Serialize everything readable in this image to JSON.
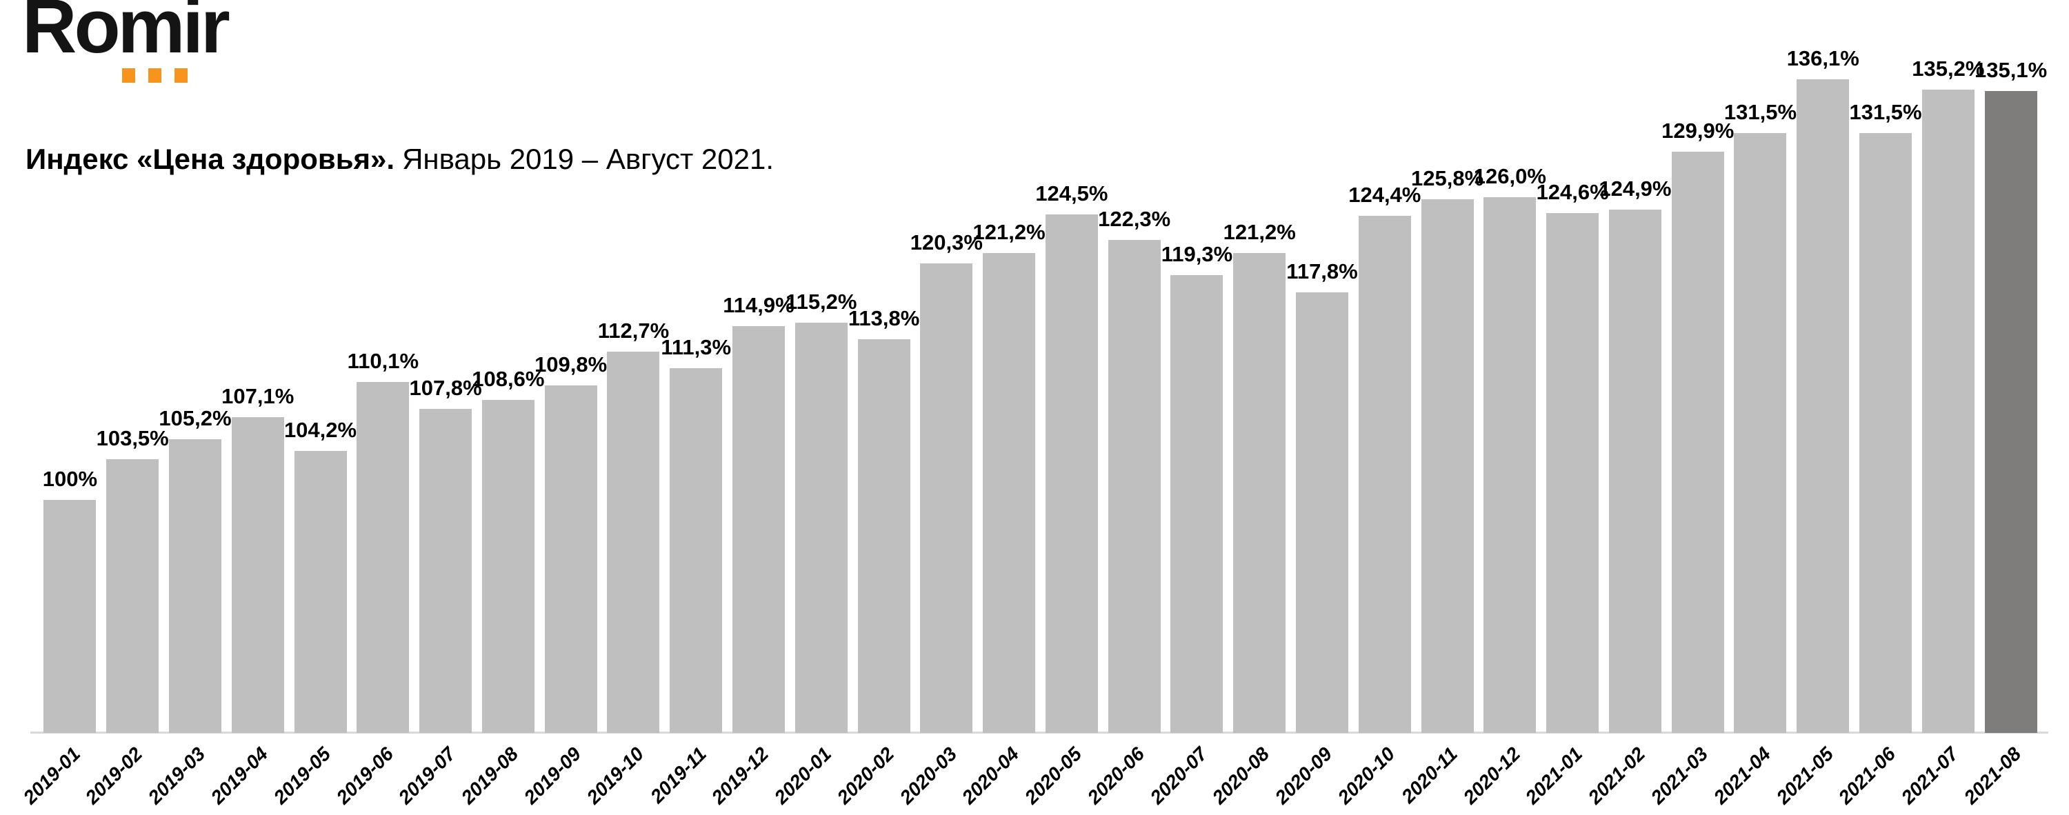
{
  "logo": {
    "text": "Romir",
    "dot_color": "#f7941d",
    "text_color": "#141414"
  },
  "chart_data": {
    "type": "bar",
    "title": "Индекс «Цена здоровья».",
    "subtitle": "Январь 2019 – Август 2021.",
    "categories": [
      "2019-01",
      "2019-02",
      "2019-03",
      "2019-04",
      "2019-05",
      "2019-06",
      "2019-07",
      "2019-08",
      "2019-09",
      "2019-10",
      "2019-11",
      "2019-12",
      "2020-01",
      "2020-02",
      "2020-03",
      "2020-04",
      "2020-05",
      "2020-06",
      "2020-07",
      "2020-08",
      "2020-09",
      "2020-10",
      "2020-11",
      "2020-12",
      "2021-01",
      "2021-02",
      "2021-03",
      "2021-04",
      "2021-05",
      "2021-06",
      "2021-07",
      "2021-08"
    ],
    "values": [
      100,
      103.5,
      105.2,
      107.1,
      104.2,
      110.1,
      107.8,
      108.6,
      109.8,
      112.7,
      111.3,
      114.9,
      115.2,
      113.8,
      120.3,
      121.2,
      124.5,
      122.3,
      119.3,
      121.2,
      117.8,
      124.4,
      125.8,
      126.0,
      124.6,
      124.9,
      129.9,
      131.5,
      136.1,
      131.5,
      135.2,
      135.1
    ],
    "labels": [
      "100%",
      "103,5%",
      "105,2%",
      "107,1%",
      "104,2%",
      "110,1%",
      "107,8%",
      "108,6%",
      "109,8%",
      "112,7%",
      "111,3%",
      "114,9%",
      "115,2%",
      "113,8%",
      "120,3%",
      "121,2%",
      "124,5%",
      "122,3%",
      "119,3%",
      "121,2%",
      "117,8%",
      "124,4%",
      "125,8%",
      "126,0%",
      "124,6%",
      "124,9%",
      "129,9%",
      "131,5%",
      "136,1%",
      "131,5%",
      "135,2%",
      "135,1%"
    ],
    "ylim": [
      80,
      140
    ],
    "grid": false,
    "legend": false,
    "bar_color": "#bfbfbf",
    "highlight_color": "#7f7c7c",
    "highlight_index": 31,
    "axis_color": "#d9d9d9"
  }
}
